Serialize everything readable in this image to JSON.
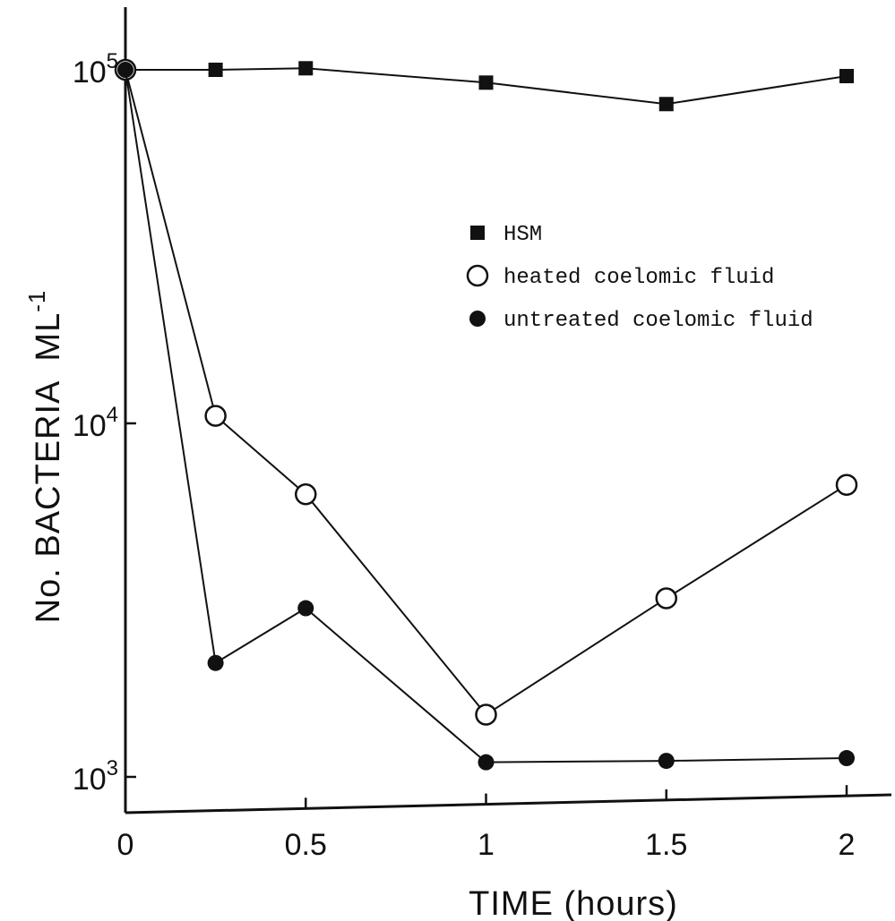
{
  "chart_data": {
    "type": "line",
    "title": "",
    "xlabel": "TIME (hours)",
    "ylabel": "No. BACTERIA  ML",
    "ylabel_exponent": "-1",
    "y_scale": "log",
    "xlim": [
      -0.03,
      2.05
    ],
    "ylim": [
      850,
      105000
    ],
    "x_ticks": [
      0,
      0.5,
      1,
      1.5,
      2
    ],
    "x_tick_labels": [
      "0",
      "0.5",
      "1",
      "1.5",
      "2"
    ],
    "y_ticks": [
      {
        "value": 1000,
        "base": "10",
        "exp": "3"
      },
      {
        "value": 10000,
        "base": "10",
        "exp": "4"
      },
      {
        "value": 100000,
        "base": "10",
        "exp": "5"
      }
    ],
    "grid": false,
    "legend_position": "top-right",
    "series": [
      {
        "name": "HSM",
        "marker": "filled-square",
        "x": [
          0,
          0.25,
          0.5,
          1.0,
          1.5,
          2.0
        ],
        "y": [
          100000,
          100000,
          101000,
          92000,
          80000,
          96000
        ]
      },
      {
        "name": "heated coelomic fluid",
        "marker": "open-circle",
        "x": [
          0,
          0.25,
          0.5,
          1.0,
          1.5,
          2.0
        ],
        "y": [
          100000,
          10500,
          6300,
          1500,
          3200,
          6700
        ]
      },
      {
        "name": "untreated coelomic fluid",
        "marker": "filled-circle",
        "x": [
          0,
          0.25,
          0.5,
          1.0,
          1.5,
          2.0
        ],
        "y": [
          100000,
          2100,
          3000,
          1100,
          1110,
          1130
        ]
      }
    ]
  }
}
